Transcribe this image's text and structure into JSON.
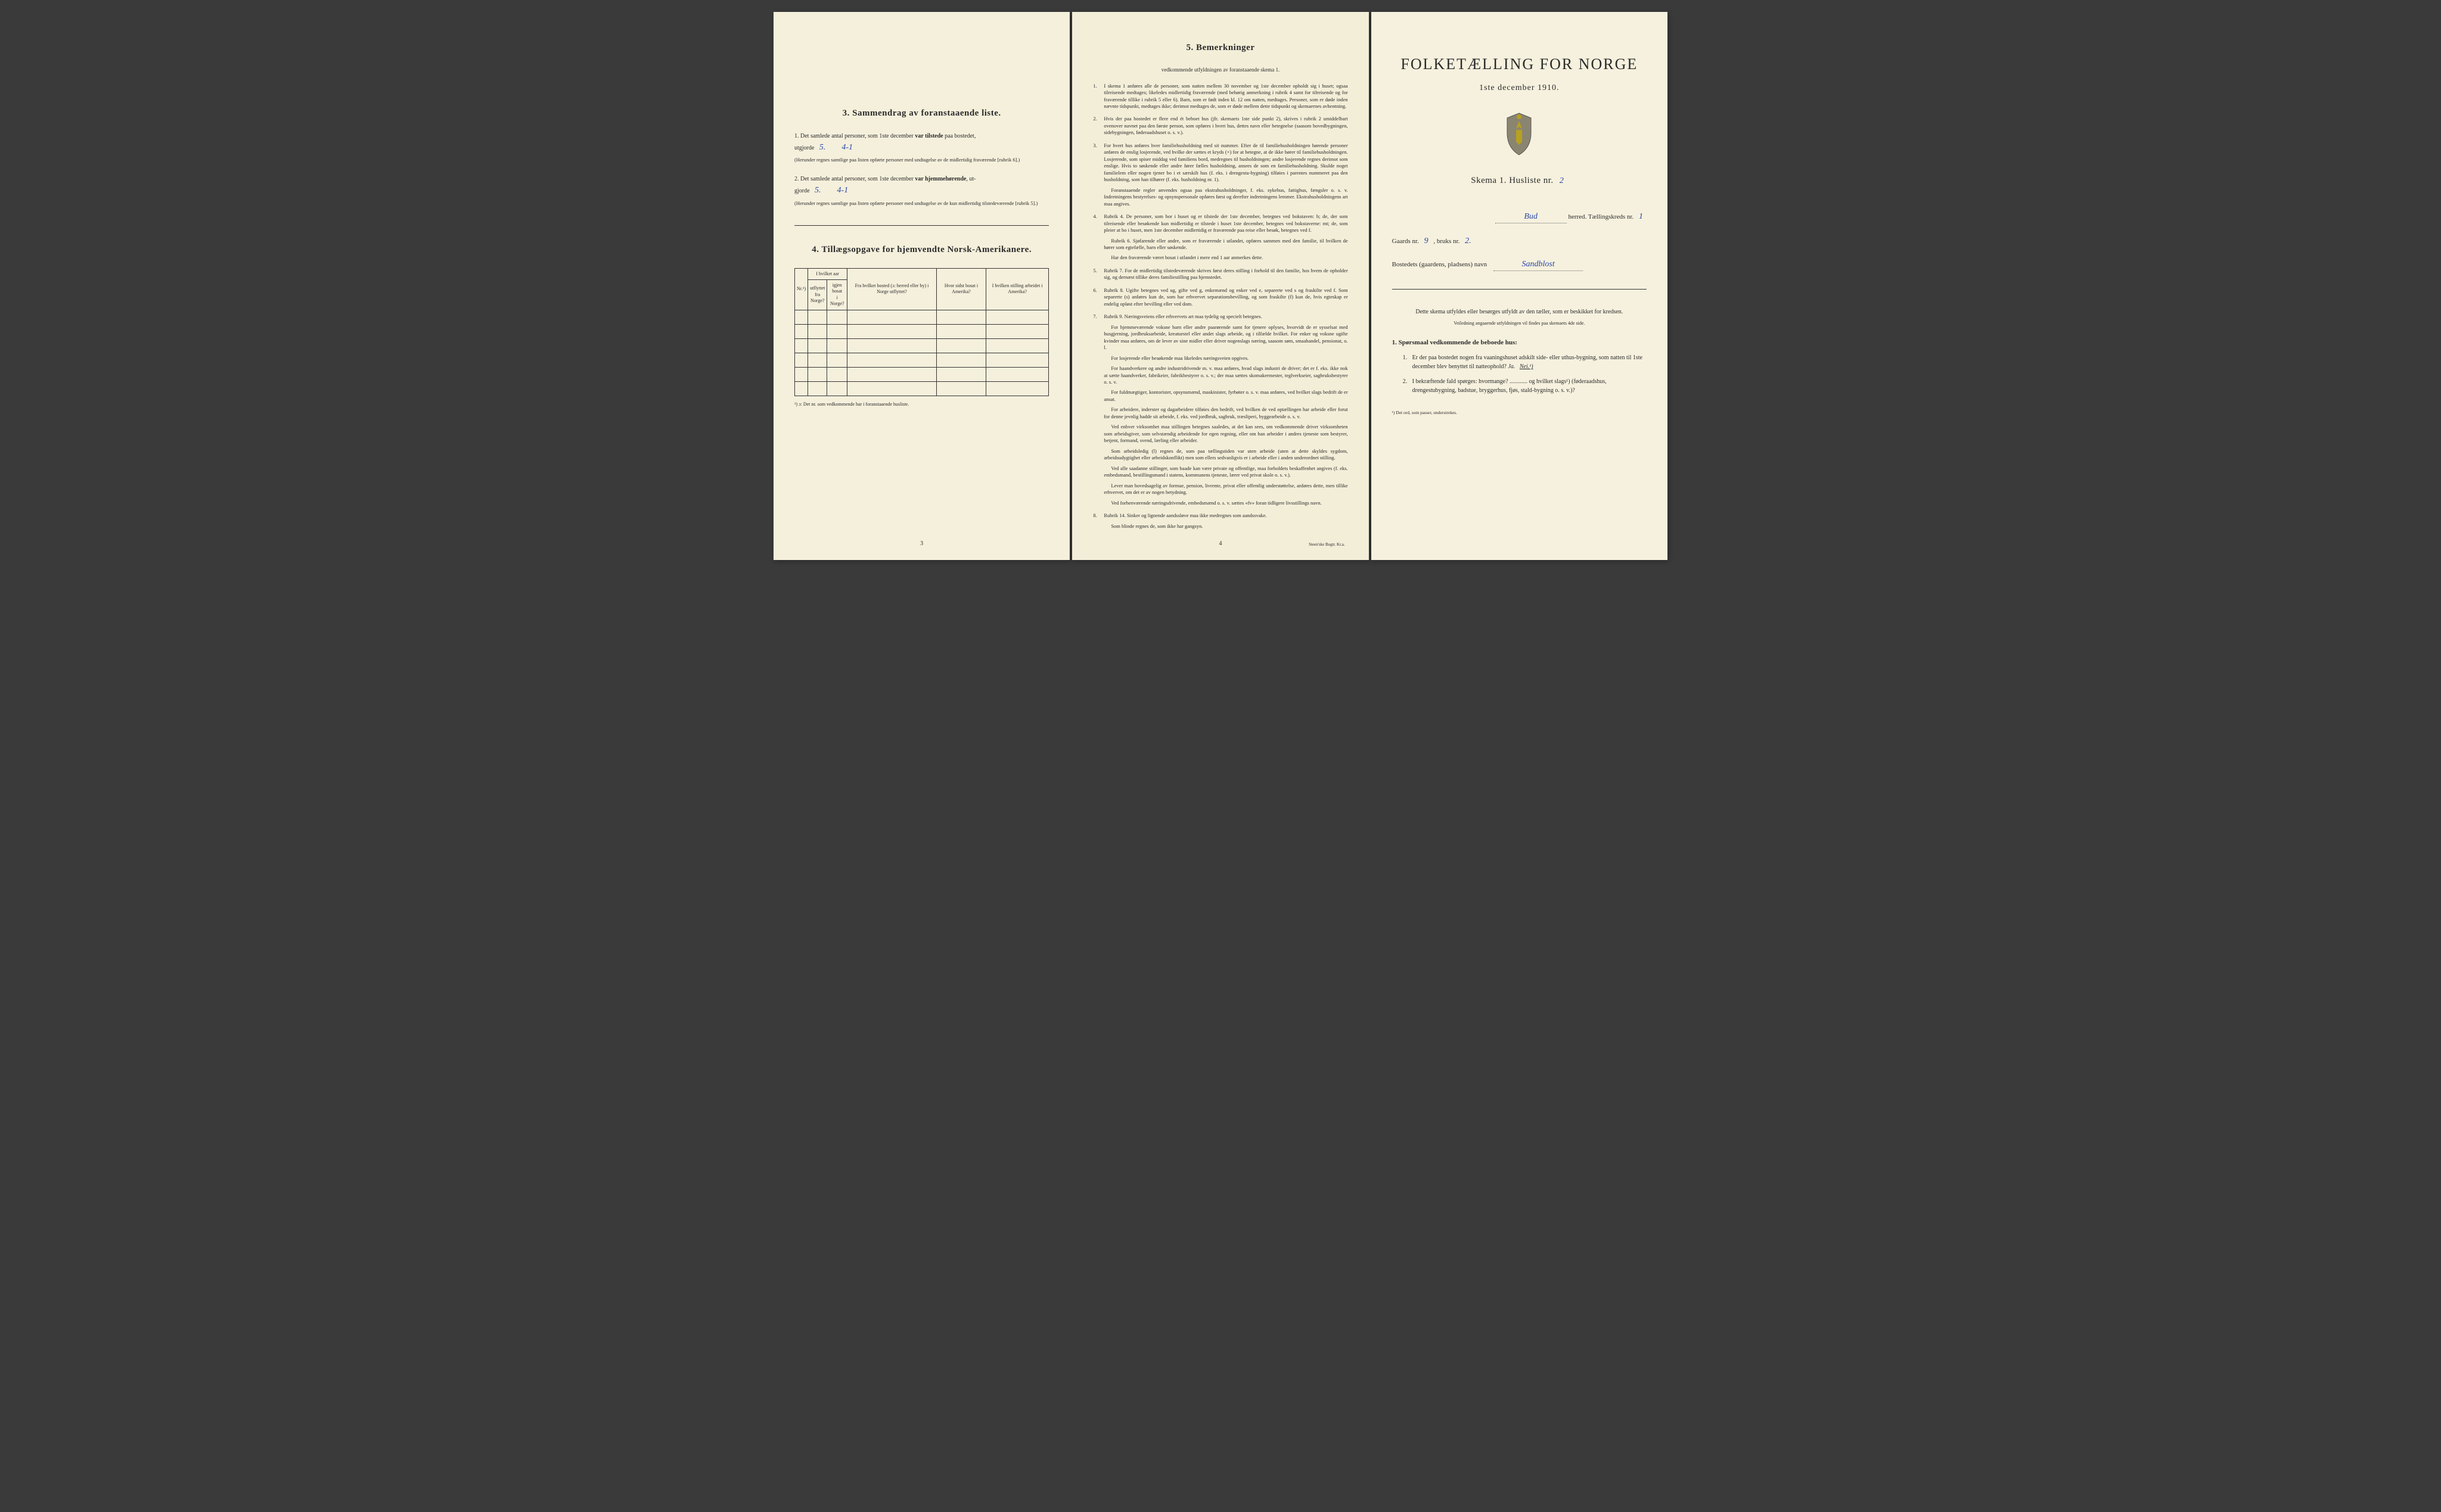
{
  "page_left": {
    "section3": {
      "title": "3.  Sammendrag av foranstaaende liste.",
      "item1_prefix": "1.  Det samlede antal personer, som 1ste december ",
      "item1_bold": "var tilstede",
      "item1_suffix": " paa bostedet,",
      "item1_line2_prefix": "utgjorde",
      "item1_value1": "5.",
      "item1_value2": "4-1",
      "item1_note": "(Herunder regnes samtlige paa listen opførte personer med undtagelse av de midlertidig fraværende [rubrik 6].)",
      "item2_prefix": "2.  Det samlede antal personer, som 1ste december ",
      "item2_bold": "var hjemmehørende",
      "item2_suffix": ", ut-",
      "item2_line2_prefix": "gjorde",
      "item2_value1": "5.",
      "item2_value2": "4-1",
      "item2_note": "(Herunder regnes samtlige paa listen opførte personer med undtagelse av de kun midlertidig tilstedeværende [rubrik 5].)"
    },
    "section4": {
      "title": "4.  Tillægsopgave for hjemvendte Norsk-Amerikanere.",
      "columns": [
        "Nr.¹)",
        "I hvilket aar utflyttet fra Norge?",
        "igjen bosat i Norge?",
        "Fra hvilket bosted (ɔ: herred eller by) i Norge utflyttet?",
        "Hvor sidst bosat i Amerika?",
        "I hvilken stilling arbeidet i Amerika?"
      ],
      "header_span": "I hvilket aar",
      "blank_rows": 6,
      "footnote": "¹) ɔ: Det nr. som vedkommende har i foranstaaende husliste."
    },
    "page_number": "3"
  },
  "page_middle": {
    "title": "5.  Bemerkninger",
    "subtitle": "vedkommende utfyldningen av foranstaaende skema 1.",
    "items": [
      {
        "num": "1.",
        "text": "I skema 1 anføres alle de personer, som natten mellem 30 november og 1ste december opholdt sig i huset; ogsaa tilreisende medtages; likeledes midlertidig fraværende (med behørig anmerkning i rubrik 4 samt for tilreisende og for fraværende tillike i rubrik 5 eller 6). Barn, som er født inden kl. 12 om natten, medtages. Personer, som er døde inden nævnte tidspunkt, medtages ikke; derimot medtages de, som er døde mellem dette tidspunkt og skemaernes avhentning."
      },
      {
        "num": "2.",
        "text": "Hvis der paa bostedet er flere end ét beboet hus (jfr. skemaets 1ste side punkt 2), skrives i rubrik 2 umiddelbart ovenover navnet paa den første person, som opføres i hvert hus, dettes navn eller betegnelse (saasom hovedbygningen, sidebygningen, føderaadshuset o. s. v.)."
      },
      {
        "num": "3.",
        "text": "For hvert hus anføres hver familiehusholdning med sit nummer. Efter de til familiehusholdningen hørende personer anføres de enslig losjerende, ved hvilke der sættes et kryds (×) for at betegne, at de ikke hører til familiehusholdningen. Losjerende, som spiser middag ved familiens bord, medregnes til husholdningen; andre losjerende regnes derimot som enslige. Hvis to søskende eller andre fører fælles husholdning, ansees de som en familiehusholdning. Skulde noget familielem eller nogen tjener bo i et særskilt hus (f. eks. i drengestu-bygning) tilføies i parentes nummeret paa den husholdning, som han tilhører (f. eks. husholdning nr. 1).",
        "para": [
          "Foranstaaende regler anvendes ogsaa paa ekstrahusholdninger, f. eks. sykehus, fattighus, fængsler o. s. v. Indretningens bestyrelses- og opsynspersonale opføres først og derefter indretningens lemmer. Ekstrahusholdningens art maa angives."
        ]
      },
      {
        "num": "4.",
        "text": "Rubrik 4. De personer, som bor i huset og er tilstede der 1ste december, betegnes ved bokstaven: b; de, der som tilreisende eller besøkende kun midlertidig er tilstede i huset 1ste december, betegnes ved bokstaverne: mt; de, som pleier at bo i huset, men 1ste december midlertidig er fraværende paa reise eller besøk, betegnes ved f.",
        "para": [
          "Rubrik 6. Sjøfarende eller andre, som er fraværende i utlandet, opføres sammen med den familie, til hvilken de hører som egtefælle, barn eller søskende.",
          "Har den fraværende været bosat i utlandet i mere end 1 aar anmerkes dette."
        ]
      },
      {
        "num": "5.",
        "text": "Rubrik 7. For de midlertidig tilstedeværende skrives først deres stilling i forhold til den familie, hos hvem de opholder sig, og dernæst tillike deres familiestilling paa hjemstedet."
      },
      {
        "num": "6.",
        "text": "Rubrik 8. Ugifte betegnes ved ug, gifte ved g, enkemænd og enker ved e, separerte ved s og fraskilte ved f. Som separerte (s) anføres kun de, som har erhvervet separationsbevilling, og som fraskilte (f) kun de, hvis egteskap er endelig opløst efter bevilling eller ved dom."
      },
      {
        "num": "7.",
        "text": "Rubrik 9. Næringsveiens eller erhvervets art maa tydelig og specielt betegnes.",
        "para": [
          "For hjemmeværende voksne barn eller andre paarørende samt for tjenere oplyses, hvorvidt de er sysselsat med husgjerning, jordbruksarbeide, kreaturstel eller andet slags arbeide, og i tilfælde hvilket. For enker og voksne ugifte kvinder maa anføres, om de lever av sine midler eller driver nogenslags næring, saasom søm, smaahandel, pensionat, o. l.",
          "For losjerende eller besøkende maa likeledes næringsveien opgives.",
          "For haandverkere og andre industridrivende m. v. maa anføres, hvad slags industri de driver; det er f. eks. ikke nok at sætte haandverker, fabrikeier, fabrikbestyrer o. s. v.; der maa sættes skomakermester, teglverkseier, sagbruksbestyrer o. s. v.",
          "For fuldmægtiger, kontorister, opsynsmænd, maskinister, fyrbøter o. s. v. maa anføres, ved hvilket slags bedrift de er ansat.",
          "For arbeidere, inderster og dagarbeidere tilføies den bedrift, ved hvilken de ved optællingen har arbeide eller forut for denne jevnlig hadde sit arbeide, f. eks. ved jordbruk, sagbruk, træsliperi, byggearbeide o. s. v.",
          "Ved enhver virksomhet maa stillingen betegnes saaledes, at det kan sees, om vedkommende driver virksomheten som arbeidsgiver, som selvstændig arbeidende for egen regning, eller om han arbeider i andres tjeneste som bestyrer, betjent, formand, svend, lærling eller arbeider.",
          "Som arbeidsledig (l) regnes de, som paa tællingstiden var uten arbeide (uten at dette skyldes sygdom, arbeidsudygtighet eller arbeidskonflikt) men som ellers sedvanligvis er i arbeide eller i anden underordnet stilling.",
          "Ved alle saadanne stillinger, som baade kan være private og offentlige, maa forholdets beskaffenhet angives (f. eks. embedsmand, bestillingsmand i statens, kommunens tjeneste, lærer ved privat skole o. s. v.).",
          "Lever man hovedsagelig av formue, pension, livrente, privat eller offentlig understøttelse, anføres dette, men tillike erhvervet, om det er av nogen betydning.",
          "Ved forhenværende næringsdrivende, embedsmænd o. s. v. sættes «fv» foran tidligere livsstillings navn."
        ]
      },
      {
        "num": "8.",
        "text": "Rubrik 14. Sinker og lignende aandssløve maa ikke medregnes som aandssvake.",
        "para": [
          "Som blinde regnes de, som ikke har gangsyn."
        ]
      }
    ],
    "page_number": "4",
    "imprint": "Steen'ske Bogtr. Kr.a."
  },
  "page_right": {
    "main_title": "FOLKETÆLLING FOR NORGE",
    "main_date": "1ste december 1910.",
    "skema_label": "Skema 1.   Husliste nr.",
    "husliste_nr": "2",
    "herred_value": "Bud",
    "herred_label": " herred.   Tællingskreds nr.",
    "kreds_nr": "1",
    "gaards_label": "Gaards nr.",
    "gaards_nr": "9",
    "bruks_label": ",   bruks nr.",
    "bruks_nr": "2.",
    "bosted_label": "Bostedets (gaardens, pladsens) navn",
    "bosted_value": "Sandblost",
    "center_note": "Dette skema utfyldes eller besørges utfyldt av den tæller, som er beskikket for kredsen.",
    "center_small": "Veiledning angaaende utfyldningen vil findes paa skemaets 4de side.",
    "q_heading": "1. Spørsmaal vedkommende de beboede hus:",
    "q1_num": "1.",
    "q1_text": "Er der paa bostedet nogen fra vaaningshuset adskilt side- eller uthus-bygning, som natten til 1ste december blev benyttet til natteophold?   ",
    "q1_ja": "Ja.",
    "q1_nei": "Nei.¹)",
    "q2_num": "2.",
    "q2_text": "I bekræftende fald spørges: hvormange? ............ og hvilket slags¹) (føderaadshus, drengestubygning, badstue, bryggerhus, fjøs, stald-bygning o. s. v.)?",
    "tiny_foot": "¹) Det ord, som passer, understrekes."
  }
}
